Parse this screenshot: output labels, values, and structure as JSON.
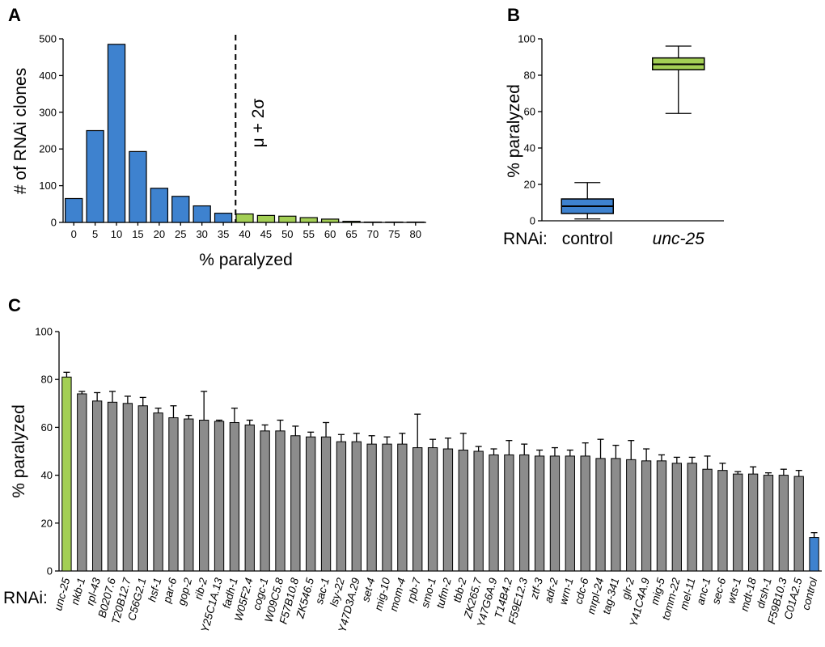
{
  "colors": {
    "blue": "#3E82CF",
    "green": "#A3CF55",
    "gray": "#8C8C8C",
    "stroke": "#000000"
  },
  "chart_data": [
    {
      "panel": "A",
      "type": "bar",
      "xlabel": "% paralyzed",
      "ylabel": "# of RNAi clones",
      "ylim": [
        0,
        500
      ],
      "yticks": [
        0,
        100,
        200,
        300,
        400,
        500
      ],
      "categories": [
        "0",
        "5",
        "10",
        "15",
        "20",
        "25",
        "30",
        "35",
        "40",
        "45",
        "50",
        "55",
        "60",
        "65",
        "70",
        "75",
        "80"
      ],
      "values": [
        65,
        250,
        485,
        193,
        93,
        71,
        45,
        25,
        23,
        19,
        17,
        13,
        9,
        3,
        1,
        1,
        1
      ],
      "colors": [
        "blue",
        "blue",
        "blue",
        "blue",
        "blue",
        "blue",
        "blue",
        "blue",
        "green",
        "green",
        "green",
        "green",
        "green",
        "green",
        "green",
        "green",
        "green"
      ],
      "threshold": {
        "x": "40",
        "label": "μ + 2σ"
      }
    },
    {
      "panel": "B",
      "type": "box",
      "ylabel": "% paralyzed",
      "ylim": [
        0,
        100
      ],
      "yticks": [
        0,
        20,
        40,
        60,
        80,
        100
      ],
      "xlabel_prefix": "RNAi:",
      "boxes": [
        {
          "label": "control",
          "min": 1,
          "q1": 4,
          "median": 8,
          "q3": 12,
          "max": 21,
          "color": "blue",
          "italic": false
        },
        {
          "label": "unc-25",
          "min": 59,
          "q1": 83,
          "median": 86,
          "q3": 89.5,
          "max": 96,
          "color": "green",
          "italic": true
        }
      ]
    },
    {
      "panel": "C",
      "type": "bar",
      "ylabel": "% paralyzed",
      "ylim": [
        0,
        100
      ],
      "yticks": [
        0,
        20,
        40,
        60,
        80,
        100
      ],
      "xlabel_prefix": "RNAi:",
      "categories": [
        "unc-25",
        "nkb-1",
        "rpl-43",
        "B0207.6",
        "T20B12.7",
        "C56G2.1",
        "hsf-1",
        "par-6",
        "gop-2",
        "rib-2",
        "Y25C1A.13",
        "fadh-1",
        "W05F2.4",
        "cogc-1",
        "W09C5.8",
        "F57B10.8",
        "ZK546.5",
        "sac-1",
        "lsy-22",
        "Y47D3A.29",
        "set-4",
        "mig-10",
        "mom-4",
        "rpb-7",
        "smo-1",
        "tufm-2",
        "tbb-2",
        "ZK265.7",
        "Y47G6A.9",
        "T14B4.2",
        "F59E12.3",
        "ztf-3",
        "adr-2",
        "wrn-1",
        "cdc-6",
        "mrpl-24",
        "tag-341",
        "glr-2",
        "Y41C4A.9",
        "mig-5",
        "tomm-22",
        "mel-11",
        "anc-1",
        "sec-6",
        "wts-1",
        "mdt-18",
        "drsh-1",
        "F59B10.3",
        "C01A2.5",
        "control"
      ],
      "values": [
        81,
        74,
        71,
        70.5,
        70,
        69,
        66,
        64,
        63.5,
        63,
        62.5,
        62,
        61,
        58.5,
        58.5,
        56.5,
        56,
        56,
        54,
        54,
        53,
        53,
        53,
        51.5,
        51.5,
        51,
        50.5,
        50,
        48.5,
        48.5,
        48.5,
        48,
        48,
        48,
        48,
        47,
        47,
        46.5,
        46,
        46,
        45,
        45,
        42.5,
        42,
        40.5,
        40.5,
        40,
        40,
        39.5,
        14
      ],
      "errors": [
        2,
        1,
        3.5,
        4.5,
        3,
        3.5,
        2,
        5,
        1.5,
        12,
        0.5,
        6,
        2,
        2.5,
        4.5,
        4,
        2,
        6,
        3,
        3.5,
        3.5,
        3,
        4.5,
        14,
        3.5,
        4.5,
        7,
        2,
        2.5,
        6,
        4.5,
        2.5,
        3.5,
        2.5,
        5.5,
        8,
        5.5,
        8,
        5,
        2.5,
        2.5,
        2.5,
        5.5,
        3,
        1,
        3,
        1,
        2.5,
        2.5,
        2
      ],
      "highlight": {
        "unc-25": "green",
        "control": "blue"
      }
    }
  ]
}
